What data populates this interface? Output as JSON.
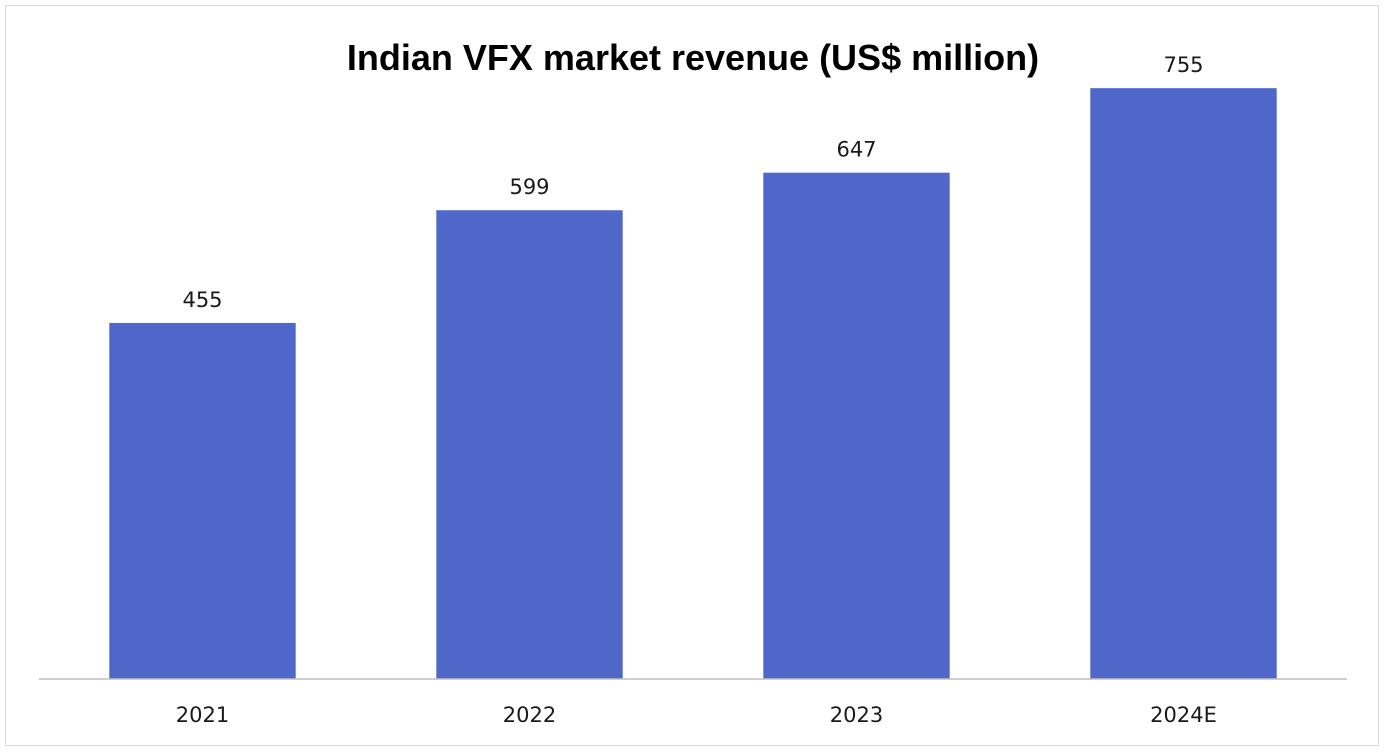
{
  "chart_data": {
    "type": "bar",
    "title": "Indian VFX market revenue (US$ million)",
    "categories": [
      "2021",
      "2022",
      "2023",
      "2024E"
    ],
    "values": [
      455,
      599,
      647,
      755
    ],
    "data_labels": [
      "455",
      "599",
      "647",
      "755"
    ],
    "xlabel": "",
    "ylabel": "",
    "ylim": [
      0,
      860
    ],
    "grid": false,
    "legend": "none",
    "bar_color": "#4f67c8",
    "axis_color": "#bfbfbf"
  }
}
